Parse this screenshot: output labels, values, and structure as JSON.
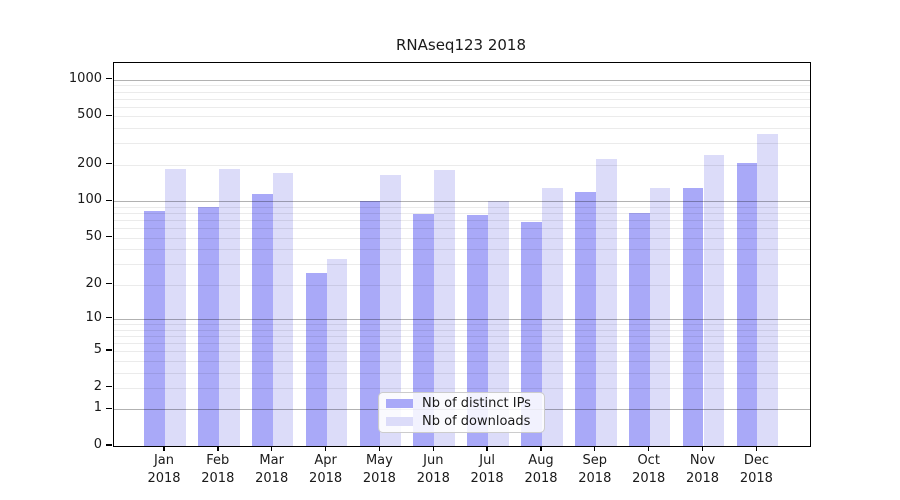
{
  "figure": {
    "title": "RNAseq123 2018"
  },
  "legend": {
    "items": [
      {
        "label": "Nb of distinct IPs",
        "color": "#a9a9f8"
      },
      {
        "label": "Nb of downloads",
        "color": "#dcdcf9"
      }
    ]
  },
  "x_axis": {
    "months": [
      "Jan",
      "Feb",
      "Mar",
      "Apr",
      "May",
      "Jun",
      "Jul",
      "Aug",
      "Sep",
      "Oct",
      "Nov",
      "Dec"
    ],
    "year": "2018"
  },
  "y_axis": {
    "tick_labels": [
      "0",
      "1",
      "2",
      "5",
      "10",
      "20",
      "50",
      "100",
      "200",
      "500",
      "1000"
    ]
  },
  "chart_data": {
    "type": "bar",
    "title": "RNAseq123 2018",
    "categories": [
      "Jan 2018",
      "Feb 2018",
      "Mar 2018",
      "Apr 2018",
      "May 2018",
      "Jun 2018",
      "Jul 2018",
      "Aug 2018",
      "Sep 2018",
      "Oct 2018",
      "Nov 2018",
      "Dec 2018"
    ],
    "series": [
      {
        "name": "Nb of distinct IPs",
        "color": "#a9a9f8",
        "values": [
          83,
          90,
          114,
          25,
          100,
          79,
          77,
          68,
          120,
          80,
          129,
          207
        ]
      },
      {
        "name": "Nb of downloads",
        "color": "#dcdcf9",
        "values": [
          184,
          184,
          170,
          33,
          165,
          180,
          100,
          128,
          224,
          130,
          239,
          358
        ]
      }
    ],
    "xlabel": "",
    "ylabel": "",
    "yscale": "symlog (y ~ ln(1+v))",
    "y_ticks": [
      0,
      1,
      2,
      5,
      10,
      20,
      50,
      100,
      200,
      500,
      1000
    ],
    "y_minor_ticks": [
      2,
      3,
      4,
      5,
      6,
      7,
      8,
      9,
      20,
      30,
      40,
      50,
      60,
      70,
      80,
      90,
      200,
      300,
      400,
      500,
      600,
      700,
      800,
      900
    ],
    "y_major_gridlines": [
      1,
      10,
      100,
      1000
    ],
    "ylim": [
      0,
      1369
    ],
    "grid": true,
    "legend_position": "lower center"
  }
}
